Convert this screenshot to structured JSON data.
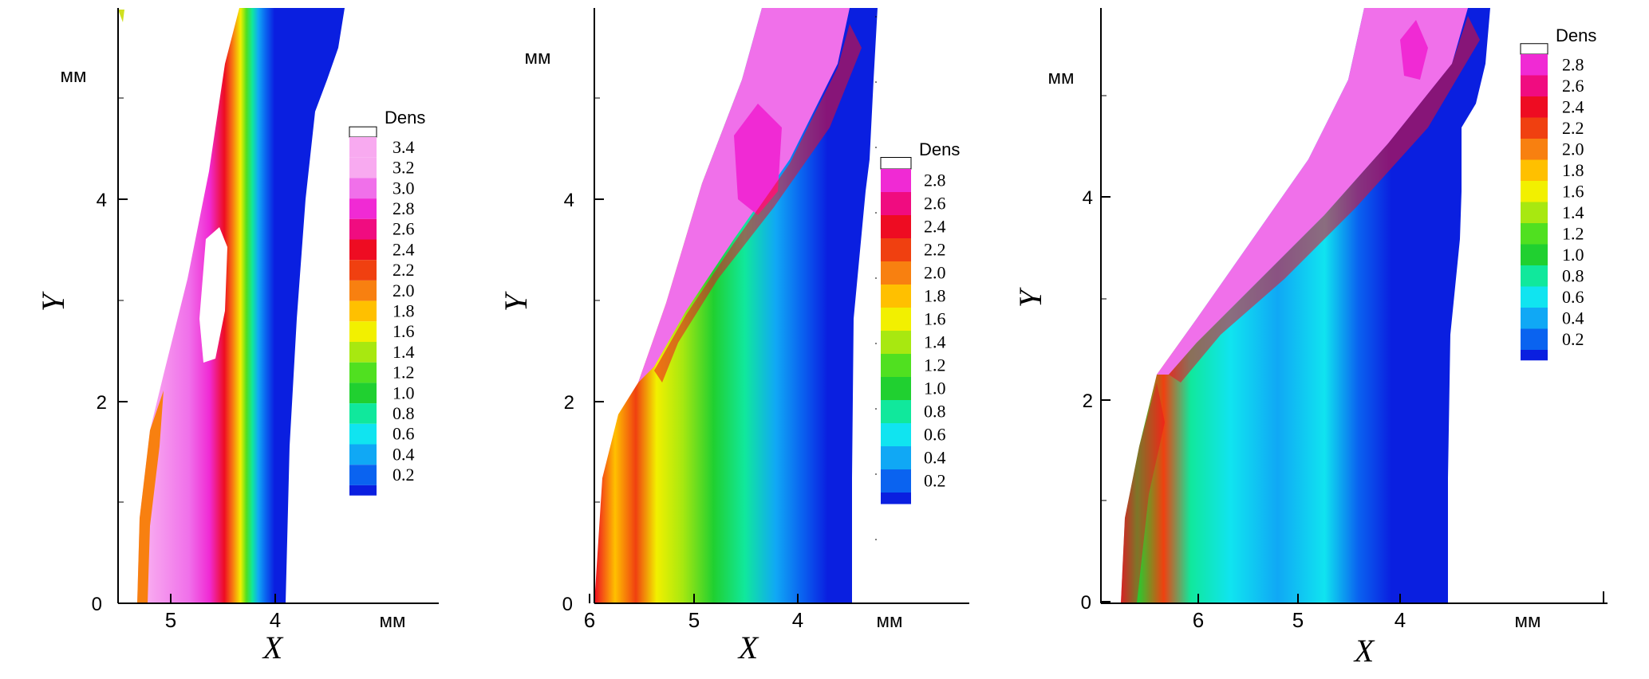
{
  "colors": {
    "levels": [
      "#0a1fe0",
      "#0a63f0",
      "#10a8f5",
      "#10e4f0",
      "#10e89c",
      "#20d030",
      "#50e020",
      "#a8e810",
      "#f2f000",
      "#ffc000",
      "#f88010",
      "#f04010",
      "#ee0c22",
      "#f00c80",
      "#f02ad4",
      "#f070ea",
      "#f8aaf0",
      "#ffffff"
    ],
    "axis": "#000000"
  },
  "chart_data": [
    {
      "type": "contour",
      "legend_title": "Dens",
      "legend_levels": [
        "3.4",
        "3.2",
        "3.0",
        "2.8",
        "2.6",
        "2.4",
        "2.2",
        "2.0",
        "1.8",
        "1.6",
        "1.4",
        "1.2",
        "1.0",
        "0.8",
        "0.6",
        "0.4",
        "0.2"
      ],
      "xlabel": "X",
      "ylabel": "Y",
      "x_unit": "мм",
      "y_unit": "мм",
      "x_ticks": [
        "5",
        "4"
      ],
      "y_ticks": [
        "0",
        "2",
        "4"
      ],
      "xlim": [
        5.5,
        2.7
      ],
      "ylim": [
        0,
        5.9
      ],
      "grid": false,
      "legend_position": "right"
    },
    {
      "type": "contour",
      "legend_title": "Dens",
      "legend_levels": [
        "2.8",
        "2.6",
        "2.4",
        "2.2",
        "2.0",
        "1.8",
        "1.6",
        "1.4",
        "1.2",
        "1.0",
        "0.8",
        "0.6",
        "0.4",
        "0.2"
      ],
      "xlabel": "X",
      "ylabel": "Y",
      "x_unit": "мм",
      "y_unit": "мм",
      "x_ticks": [
        "6",
        "5",
        "4"
      ],
      "y_ticks": [
        "0",
        "2",
        "4"
      ],
      "xlim": [
        6.1,
        2.3
      ],
      "ylim": [
        0,
        5.9
      ],
      "grid": false,
      "legend_position": "right"
    },
    {
      "type": "contour",
      "legend_title": "Dens",
      "legend_levels": [
        "2.8",
        "2.6",
        "2.4",
        "2.2",
        "2.0",
        "1.8",
        "1.6",
        "1.4",
        "1.2",
        "1.0",
        "0.8",
        "0.6",
        "0.4",
        "0.2"
      ],
      "xlabel": "X",
      "ylabel": "Y",
      "x_unit": "мм",
      "y_unit": "мм",
      "x_ticks": [
        "6",
        "5",
        "4"
      ],
      "y_ticks": [
        "0",
        "2",
        "4"
      ],
      "xlim": [
        6.9,
        2.1
      ],
      "ylim": [
        0,
        5.9
      ],
      "grid": false,
      "legend_position": "right"
    }
  ]
}
